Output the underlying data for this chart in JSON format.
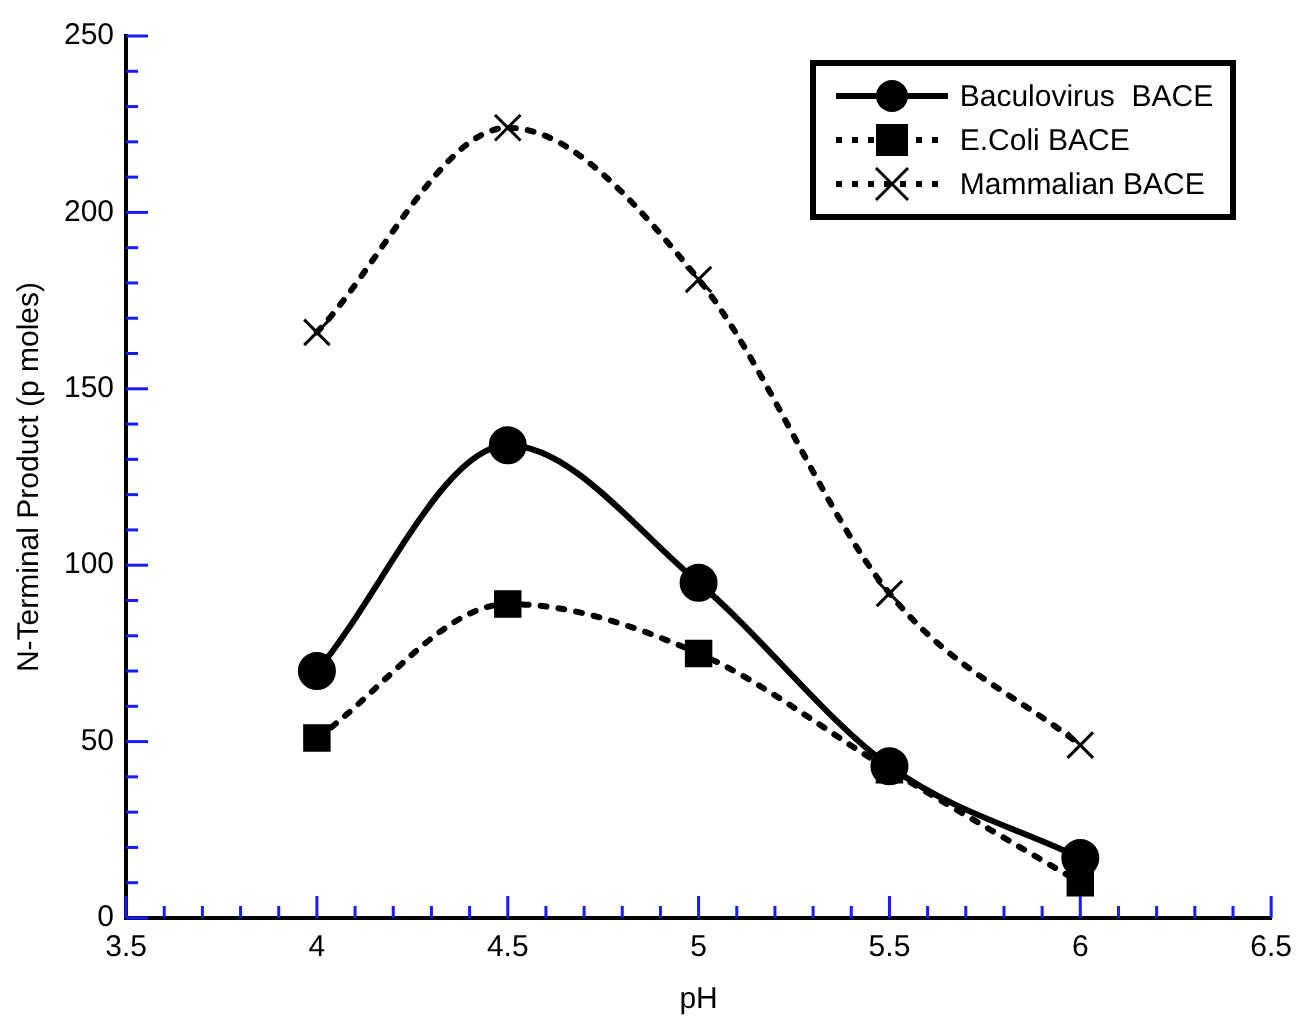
{
  "chart_data": {
    "type": "line",
    "xlabel": "pH",
    "ylabel": "N-Terminal Product (p moles)",
    "x": [
      4,
      4.5,
      5,
      5.5,
      6
    ],
    "series": [
      {
        "name": "Baculovirus  BACE",
        "color": "#000000",
        "marker": "circle",
        "line_style": "solid",
        "values": [
          70,
          134,
          95,
          43,
          17
        ]
      },
      {
        "name": "E.Coli BACE",
        "color": "#000000",
        "marker": "square",
        "line_style": "dotted",
        "values": [
          51,
          89,
          75,
          42,
          10
        ]
      },
      {
        "name": "Mammalian BACE",
        "color": "#000000",
        "marker": "cross",
        "line_style": "dotted",
        "values": [
          166,
          224,
          181,
          92,
          49
        ]
      }
    ],
    "xlim": [
      3.5,
      6.5
    ],
    "xticks": [
      3.5,
      {
        "value": 3.6,
        "label": null
      },
      {
        "value": 3.7,
        "label": null
      },
      {
        "value": 3.8,
        "label": null
      },
      {
        "value": 3.9,
        "label": null
      },
      4,
      {
        "value": 4.1,
        "label": null
      },
      {
        "value": 4.2,
        "label": null
      },
      {
        "value": 4.3,
        "label": null
      },
      {
        "value": 4.4,
        "label": null
      },
      4.5,
      {
        "value": 4.6,
        "label": null
      },
      {
        "value": 4.7,
        "label": null
      },
      {
        "value": 4.8,
        "label": null
      },
      {
        "value": 4.9,
        "label": null
      },
      5,
      {
        "value": 5.1,
        "label": null
      },
      {
        "value": 5.2,
        "label": null
      },
      {
        "value": 5.3,
        "label": null
      },
      {
        "value": 5.4,
        "label": null
      },
      5.5,
      {
        "value": 5.6,
        "label": null
      },
      {
        "value": 5.7,
        "label": null
      },
      {
        "value": 5.8,
        "label": null
      },
      {
        "value": 5.9,
        "label": null
      },
      6,
      {
        "value": 6.1,
        "label": null
      },
      {
        "value": 6.2,
        "label": null
      },
      {
        "value": 6.3,
        "label": null
      },
      {
        "value": 6.4,
        "label": null
      },
      6.5
    ],
    "ylim": [
      0,
      250
    ],
    "yticks": [
      0,
      {
        "value": 10,
        "label": null
      },
      {
        "value": 20,
        "label": null
      },
      {
        "value": 30,
        "label": null
      },
      {
        "value": 40,
        "label": null
      },
      50,
      {
        "value": 60,
        "label": null
      },
      {
        "value": 70,
        "label": null
      },
      {
        "value": 80,
        "label": null
      },
      {
        "value": 90,
        "label": null
      },
      100,
      {
        "value": 110,
        "label": null
      },
      {
        "value": 120,
        "label": null
      },
      {
        "value": 130,
        "label": null
      },
      {
        "value": 140,
        "label": null
      },
      150,
      {
        "value": 160,
        "label": null
      },
      {
        "value": 170,
        "label": null
      },
      {
        "value": 180,
        "label": null
      },
      {
        "value": 190,
        "label": null
      },
      200,
      {
        "value": 210,
        "label": null
      },
      {
        "value": 220,
        "label": null
      },
      {
        "value": 230,
        "label": null
      },
      {
        "value": 240,
        "label": null
      },
      250
    ],
    "grid": false,
    "legend": "top right"
  }
}
